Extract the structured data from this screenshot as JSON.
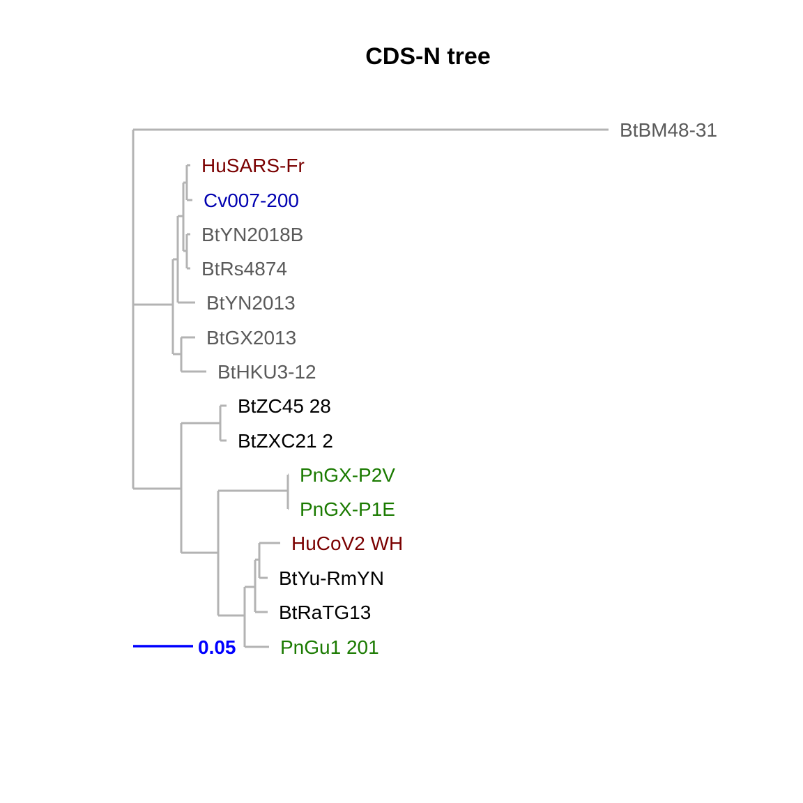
{
  "title": "CDS-N tree",
  "colors": {
    "branch": "#b3b3b3",
    "scale_bar": "#0000ff",
    "human": "#7a0000",
    "civet": "#0000b0",
    "bat_group_a": "#5a5a5a",
    "bat_group_b": "#000000",
    "pangolin": "#1a7a00"
  },
  "tips": [
    {
      "label": "BtBM48-31",
      "color": "#5a5a5a"
    },
    {
      "label": "HuSARS-Fr",
      "color": "#7a0000"
    },
    {
      "label": "Cv007-200",
      "color": "#0000b0"
    },
    {
      "label": "BtYN2018B",
      "color": "#5a5a5a"
    },
    {
      "label": "BtRs4874",
      "color": "#5a5a5a"
    },
    {
      "label": "BtYN2013",
      "color": "#5a5a5a"
    },
    {
      "label": "BtGX2013",
      "color": "#5a5a5a"
    },
    {
      "label": "BtHKU3-12",
      "color": "#5a5a5a"
    },
    {
      "label": "BtZC45 28",
      "color": "#000000"
    },
    {
      "label": "BtZXC21 2",
      "color": "#000000"
    },
    {
      "label": "PnGX-P2V",
      "color": "#1a7a00"
    },
    {
      "label": "PnGX-P1E",
      "color": "#1a7a00"
    },
    {
      "label": "HuCoV2 WH",
      "color": "#7a0000"
    },
    {
      "label": "BtYu-RmYN",
      "color": "#000000"
    },
    {
      "label": "BtRaTG13",
      "color": "#000000"
    },
    {
      "label": "PnGu1 201",
      "color": "#1a7a00"
    }
  ],
  "scale_bar": {
    "value": 0.05,
    "label": "0.05"
  }
}
